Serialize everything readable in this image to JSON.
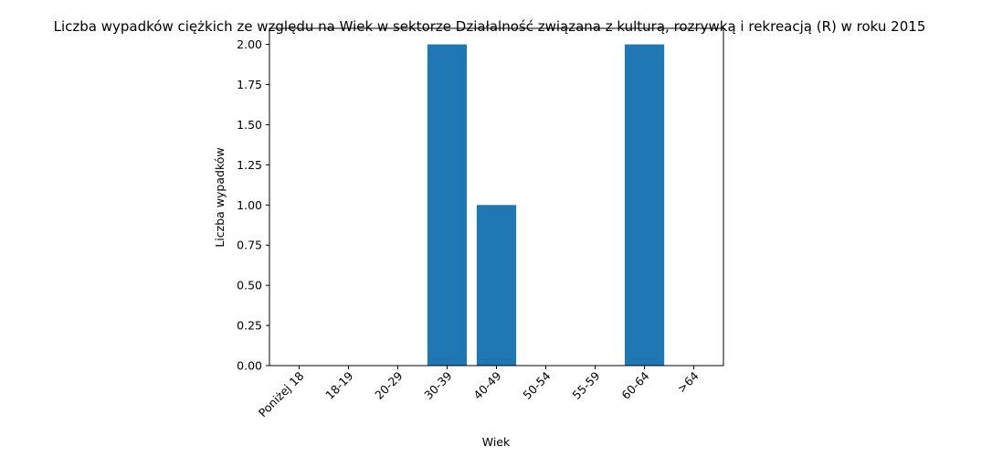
{
  "chart_data": {
    "type": "bar",
    "title": "Liczba wypadków ciężkich ze względu na Wiek w sektorze Działalność związana z kulturą, rozrywką i rekreacją (R) w roku 2015",
    "xlabel": "Wiek",
    "ylabel": "Liczba wypadków",
    "categories": [
      "Poniżej 18",
      "18-19",
      "20-29",
      "30-39",
      "40-49",
      "50-54",
      "55-59",
      "60-64",
      ">64"
    ],
    "values": [
      0,
      0,
      0,
      2,
      1,
      0,
      0,
      2,
      0
    ],
    "ylim": [
      0,
      2.1
    ],
    "yticks": [
      "0.00",
      "0.25",
      "0.50",
      "0.75",
      "1.00",
      "1.25",
      "1.50",
      "1.75",
      "2.00"
    ],
    "grid": false,
    "bar_color": "#1f77b4"
  }
}
